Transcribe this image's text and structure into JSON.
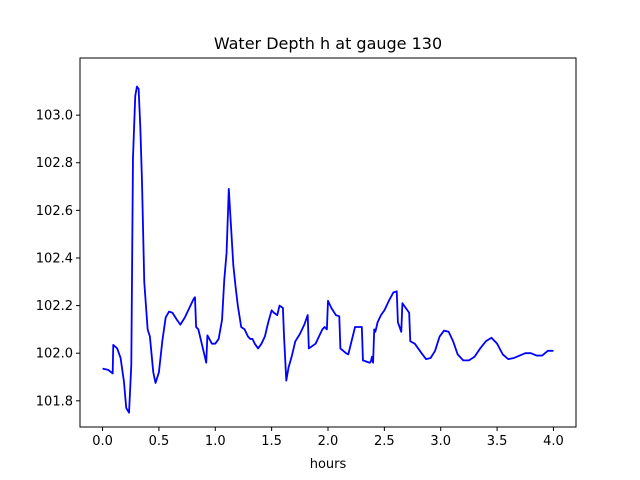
{
  "chart_data": {
    "type": "line",
    "title": "Water Depth h at gauge 130",
    "xlabel": "hours",
    "ylabel": "",
    "xlim": [
      -0.2,
      4.2
    ],
    "ylim": [
      101.69,
      103.24
    ],
    "xticks": [
      0.0,
      0.5,
      1.0,
      1.5,
      2.0,
      2.5,
      3.0,
      3.5,
      4.0
    ],
    "xtick_labels": [
      "0.0",
      "0.5",
      "1.0",
      "1.5",
      "2.0",
      "2.5",
      "3.0",
      "3.5",
      "4.0"
    ],
    "yticks": [
      101.8,
      102.0,
      102.2,
      102.4,
      102.6,
      102.8,
      103.0
    ],
    "ytick_labels": [
      "101.8",
      "102.0",
      "102.2",
      "102.4",
      "102.6",
      "102.8",
      "103.0"
    ],
    "grid": false,
    "legend": false,
    "series": [
      {
        "color": "#0000ff",
        "x": [
          0.0,
          0.05,
          0.09,
          0.095,
          0.13,
          0.16,
          0.19,
          0.21,
          0.235,
          0.255,
          0.27,
          0.29,
          0.305,
          0.32,
          0.335,
          0.35,
          0.37,
          0.4,
          0.42,
          0.45,
          0.47,
          0.5,
          0.53,
          0.56,
          0.59,
          0.62,
          0.66,
          0.69,
          0.73,
          0.77,
          0.81,
          0.82,
          0.83,
          0.85,
          0.88,
          0.92,
          0.93,
          0.97,
          1.0,
          1.03,
          1.06,
          1.08,
          1.1,
          1.12,
          1.14,
          1.16,
          1.18,
          1.2,
          1.22,
          1.23,
          1.26,
          1.29,
          1.31,
          1.33,
          1.35,
          1.38,
          1.41,
          1.44,
          1.47,
          1.5,
          1.52,
          1.55,
          1.57,
          1.6,
          1.61,
          1.63,
          1.65,
          1.68,
          1.71,
          1.75,
          1.79,
          1.82,
          1.83,
          1.86,
          1.89,
          1.92,
          1.95,
          1.97,
          1.99,
          2.0,
          2.03,
          2.07,
          2.1,
          2.11,
          2.16,
          2.18,
          2.24,
          2.25,
          2.3,
          2.31,
          2.37,
          2.38,
          2.39,
          2.4,
          2.41,
          2.42,
          2.44,
          2.47,
          2.5,
          2.54,
          2.58,
          2.61,
          2.62,
          2.65,
          2.66,
          2.69,
          2.72,
          2.73,
          2.77,
          2.8,
          2.83,
          2.87,
          2.91,
          2.95,
          2.99,
          3.03,
          3.07,
          3.11,
          3.15,
          3.2,
          3.25,
          3.3,
          3.35,
          3.4,
          3.45,
          3.5,
          3.55,
          3.6,
          3.65,
          3.7,
          3.75,
          3.8,
          3.85,
          3.9,
          3.95,
          4.0
        ],
        "y": [
          101.935,
          101.93,
          101.915,
          102.035,
          102.02,
          101.98,
          101.88,
          101.77,
          101.75,
          101.95,
          102.82,
          103.08,
          103.12,
          103.11,
          102.95,
          102.72,
          102.3,
          102.1,
          102.07,
          101.92,
          101.875,
          101.92,
          102.05,
          102.15,
          102.175,
          102.17,
          102.14,
          102.12,
          102.15,
          102.19,
          102.23,
          102.235,
          102.11,
          102.1,
          102.04,
          101.96,
          102.075,
          102.04,
          102.04,
          102.06,
          102.14,
          102.31,
          102.42,
          102.69,
          102.53,
          102.37,
          102.28,
          102.2,
          102.14,
          102.11,
          102.1,
          102.07,
          102.06,
          102.06,
          102.04,
          102.02,
          102.04,
          102.07,
          102.13,
          102.18,
          102.17,
          102.16,
          102.2,
          102.19,
          102.07,
          101.885,
          101.94,
          101.99,
          102.05,
          102.08,
          102.12,
          102.16,
          102.02,
          102.03,
          102.04,
          102.07,
          102.1,
          102.11,
          102.1,
          102.22,
          102.19,
          102.16,
          102.155,
          102.02,
          102.0,
          101.995,
          102.11,
          102.11,
          102.11,
          101.97,
          101.96,
          101.965,
          101.985,
          101.96,
          102.1,
          102.09,
          102.13,
          102.16,
          102.18,
          102.22,
          102.255,
          102.26,
          102.13,
          102.09,
          102.21,
          102.19,
          102.17,
          102.05,
          102.04,
          102.02,
          102.0,
          101.975,
          101.98,
          102.01,
          102.07,
          102.095,
          102.09,
          102.05,
          101.995,
          101.97,
          101.97,
          101.985,
          102.02,
          102.05,
          102.065,
          102.04,
          101.995,
          101.975,
          101.98,
          101.99,
          102.0,
          102.0,
          101.99,
          101.99,
          102.01,
          102.01
        ]
      }
    ]
  }
}
